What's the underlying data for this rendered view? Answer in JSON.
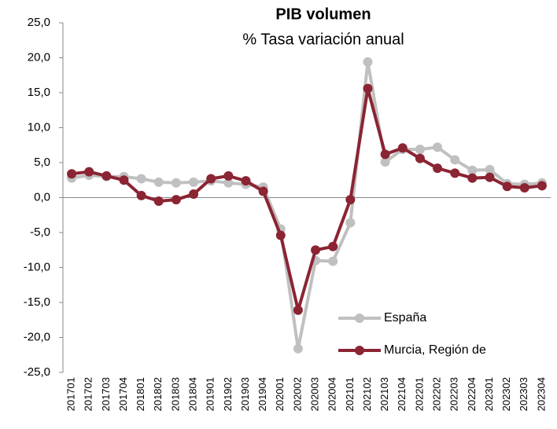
{
  "chart_data": {
    "type": "line",
    "title": "PIB volumen",
    "subtitle": "% Tasa variación anual",
    "categories": [
      "201701",
      "201702",
      "201703",
      "201704",
      "201801",
      "201802",
      "201803",
      "201804",
      "201901",
      "201902",
      "201903",
      "201904",
      "202001",
      "202002",
      "202003",
      "202004",
      "202101",
      "202102",
      "202103",
      "202104",
      "202201",
      "202202",
      "202203",
      "202204",
      "202301",
      "202302",
      "202303",
      "202304"
    ],
    "series": [
      {
        "name": "España",
        "color": "#c0c0c0",
        "values": [
          2.8,
          3.2,
          3.0,
          3.0,
          2.7,
          2.2,
          2.1,
          2.2,
          2.4,
          2.1,
          1.9,
          1.5,
          -4.5,
          -21.6,
          -9.0,
          -9.1,
          -3.6,
          19.4,
          5.1,
          6.9,
          6.9,
          7.2,
          5.4,
          3.9,
          4.0,
          2.0,
          1.9,
          2.1
        ]
      },
      {
        "name": "Murcia, Región de",
        "color": "#8b2433",
        "values": [
          3.4,
          3.7,
          3.1,
          2.5,
          0.3,
          -0.5,
          -0.3,
          0.5,
          2.7,
          3.1,
          2.4,
          0.9,
          -5.4,
          -16.1,
          -7.5,
          -7.0,
          -0.3,
          15.6,
          6.2,
          7.1,
          5.6,
          4.2,
          3.5,
          2.8,
          2.9,
          1.6,
          1.4,
          1.7
        ]
      }
    ],
    "ylim": [
      -25,
      25
    ],
    "yticks": [
      {
        "value": -25,
        "label": "-25,0"
      },
      {
        "value": -20,
        "label": "-20,0"
      },
      {
        "value": -15,
        "label": "-15,0"
      },
      {
        "value": -10,
        "label": "-10,0"
      },
      {
        "value": -5,
        "label": "-5,0"
      },
      {
        "value": 0,
        "label": "0,0"
      },
      {
        "value": 5,
        "label": "5,0"
      },
      {
        "value": 10,
        "label": "10,0"
      },
      {
        "value": 15,
        "label": "15,0"
      },
      {
        "value": 20,
        "label": "20,0"
      },
      {
        "value": 25,
        "label": "25,0"
      }
    ],
    "grid": false,
    "legend": "lower right"
  }
}
